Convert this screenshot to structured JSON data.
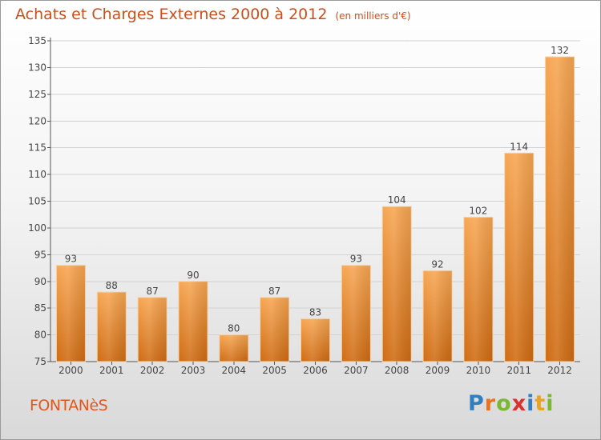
{
  "header": {
    "title": "Achats et Charges Externes 2000 à 2012",
    "unit": "(en milliers d'€)"
  },
  "footer": {
    "commune": "FONTANèS",
    "brand_letters": [
      "P",
      "r",
      "o",
      "x",
      "i",
      "t",
      "i"
    ],
    "brand_colors": [
      "#2f7fc1",
      "#e8731f",
      "#79b82f",
      "#d6322f",
      "#2f7fc1",
      "#e8a31f",
      "#79b82f"
    ]
  },
  "chart_data": {
    "type": "bar",
    "title": "Achats et Charges Externes 2000 à 2012",
    "subtitle": "(en milliers d'€)",
    "categories": [
      "2000",
      "2001",
      "2002",
      "2003",
      "2004",
      "2005",
      "2006",
      "2007",
      "2008",
      "2009",
      "2010",
      "2011",
      "2012"
    ],
    "values": [
      93,
      88,
      87,
      90,
      80,
      87,
      83,
      93,
      104,
      92,
      102,
      114,
      132
    ],
    "ylim": [
      75,
      135
    ],
    "yticks": [
      75,
      80,
      85,
      90,
      95,
      100,
      105,
      110,
      115,
      120,
      125,
      130,
      135
    ],
    "grid": true,
    "bar_color_light": "#f7a652",
    "bar_color_dark": "#cf6b12"
  }
}
